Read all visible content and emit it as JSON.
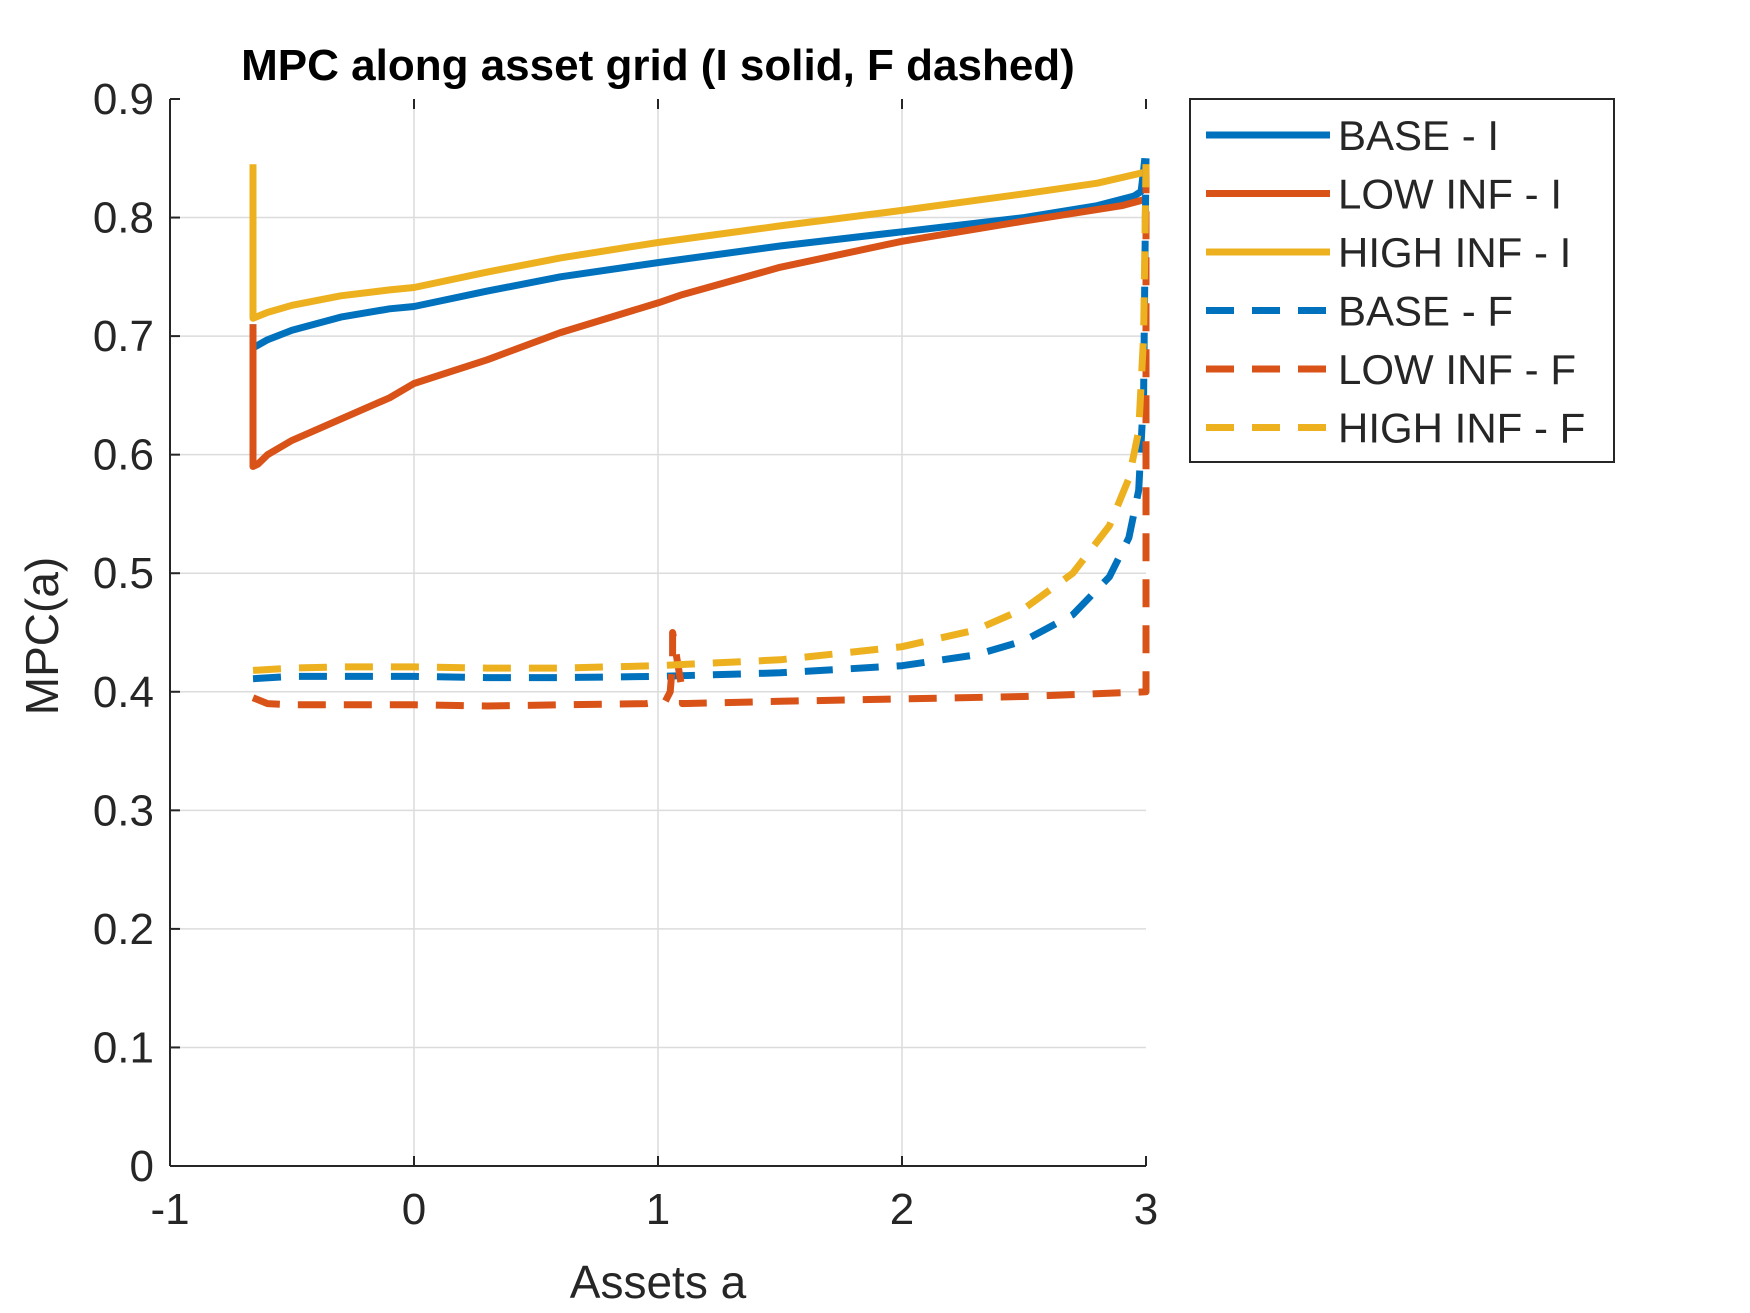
{
  "chart_data": {
    "type": "line",
    "title": "MPC along asset grid (I solid, F dashed)",
    "xlabel": "Assets a",
    "ylabel": "MPC(a)",
    "xlim": [
      -1,
      3
    ],
    "ylim": [
      0,
      0.9
    ],
    "xticks": [
      -1,
      0,
      1,
      2,
      3
    ],
    "xtick_labels": [
      "-1",
      "0",
      "1",
      "2",
      "3"
    ],
    "yticks": [
      0,
      0.1,
      0.2,
      0.3,
      0.4,
      0.5,
      0.6,
      0.7,
      0.8,
      0.9
    ],
    "ytick_labels": [
      "0",
      "0.1",
      "0.2",
      "0.3",
      "0.4",
      "0.5",
      "0.6",
      "0.7",
      "0.8",
      "0.9"
    ],
    "grid": true,
    "legend_position": "outside top-right",
    "series": [
      {
        "name": "BASE - I",
        "color": "#0072BD",
        "style": "solid",
        "x": [
          -0.66,
          -0.66,
          -0.6,
          -0.5,
          -0.3,
          -0.1,
          0,
          0.3,
          0.6,
          1.0,
          1.5,
          2.0,
          2.5,
          2.8,
          2.95,
          2.98,
          2.99,
          2.995
        ],
        "y": [
          0.71,
          0.69,
          0.697,
          0.705,
          0.716,
          0.723,
          0.725,
          0.738,
          0.75,
          0.762,
          0.776,
          0.788,
          0.8,
          0.81,
          0.818,
          0.822,
          0.84,
          0.85
        ]
      },
      {
        "name": "LOW INF - I",
        "color": "#D95319",
        "style": "solid",
        "x": [
          -0.66,
          -0.66,
          -0.64,
          -0.6,
          -0.5,
          -0.3,
          -0.1,
          0,
          0.3,
          0.6,
          1.0,
          1.1,
          1.5,
          2.0,
          2.5,
          2.9,
          2.99
        ],
        "y": [
          0.71,
          0.59,
          0.592,
          0.6,
          0.612,
          0.63,
          0.648,
          0.66,
          0.68,
          0.703,
          0.728,
          0.735,
          0.758,
          0.78,
          0.797,
          0.81,
          0.815
        ]
      },
      {
        "name": "HIGH INF - I",
        "color": "#EDB120",
        "style": "solid",
        "x": [
          -0.66,
          -0.66,
          -0.6,
          -0.5,
          -0.3,
          -0.1,
          0,
          0.3,
          0.6,
          1.0,
          1.5,
          2.0,
          2.5,
          2.8,
          2.99
        ],
        "y": [
          0.845,
          0.715,
          0.72,
          0.726,
          0.734,
          0.739,
          0.741,
          0.754,
          0.766,
          0.779,
          0.793,
          0.806,
          0.82,
          0.829,
          0.838
        ]
      },
      {
        "name": "BASE - F",
        "color": "#0072BD",
        "style": "dashed",
        "x": [
          -0.66,
          -0.5,
          -0.3,
          0,
          0.3,
          0.6,
          1.0,
          1.5,
          2.0,
          2.3,
          2.5,
          2.7,
          2.85,
          2.93,
          2.97,
          2.99,
          3.0
        ],
        "y": [
          0.411,
          0.413,
          0.413,
          0.413,
          0.412,
          0.412,
          0.413,
          0.416,
          0.422,
          0.431,
          0.443,
          0.465,
          0.497,
          0.53,
          0.57,
          0.65,
          0.85
        ]
      },
      {
        "name": "LOW INF - F",
        "color": "#D95319",
        "style": "dashed",
        "x": [
          -0.66,
          -0.6,
          -0.5,
          -0.3,
          0,
          0.3,
          0.6,
          0.95,
          1.03,
          1.05,
          1.06,
          1.06,
          1.1,
          1.1,
          1.5,
          2.0,
          2.5,
          3.0,
          3.0,
          3.0
        ],
        "y": [
          0.395,
          0.39,
          0.389,
          0.389,
          0.389,
          0.388,
          0.389,
          0.39,
          0.392,
          0.4,
          0.425,
          0.45,
          0.4,
          0.39,
          0.392,
          0.394,
          0.396,
          0.4,
          0.6,
          0.85
        ]
      },
      {
        "name": "HIGH INF - F",
        "color": "#EDB120",
        "style": "dashed",
        "x": [
          -0.66,
          -0.5,
          -0.3,
          0,
          0.3,
          0.6,
          1.0,
          1.5,
          2.0,
          2.3,
          2.5,
          2.7,
          2.85,
          2.93,
          2.97,
          2.99,
          3.0
        ],
        "y": [
          0.418,
          0.42,
          0.421,
          0.421,
          0.42,
          0.42,
          0.422,
          0.427,
          0.438,
          0.452,
          0.47,
          0.5,
          0.54,
          0.58,
          0.62,
          0.7,
          0.845
        ]
      }
    ]
  }
}
